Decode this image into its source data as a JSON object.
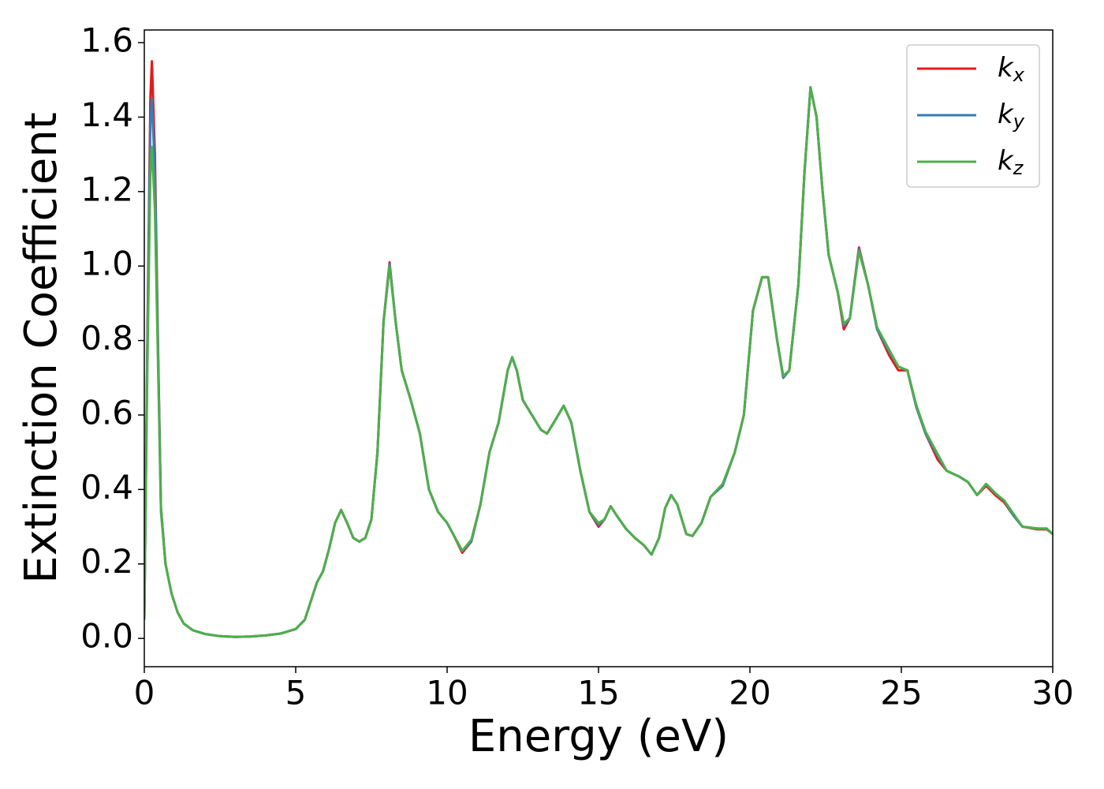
{
  "chart_data": {
    "type": "line",
    "xlabel": "Energy (eV)",
    "ylabel": "Extinction Coefficient",
    "xlim": [
      0,
      30
    ],
    "ylim": [
      -0.076,
      1.634
    ],
    "xticks": [
      0,
      5,
      10,
      15,
      20,
      25,
      30
    ],
    "yticks": [
      {
        "value": 0,
        "label": "0.0"
      },
      {
        "value": 0.2,
        "label": "0.2"
      },
      {
        "value": 0.4,
        "label": "0.4"
      },
      {
        "value": 0.6,
        "label": "0.6"
      },
      {
        "value": 0.8,
        "label": "0.8"
      },
      {
        "value": 1.0,
        "label": "1.0"
      },
      {
        "value": 1.2,
        "label": "1.2"
      },
      {
        "value": 1.4,
        "label": "1.4"
      },
      {
        "value": 1.6,
        "label": "1.6"
      }
    ],
    "legend": "upper right",
    "x": [
      0,
      0.1,
      0.2,
      0.25,
      0.35,
      0.45,
      0.55,
      0.7,
      0.9,
      1.1,
      1.3,
      1.6,
      2.0,
      2.5,
      3,
      3.5,
      4,
      4.5,
      5,
      5.3,
      5.5,
      5.7,
      5.9,
      6.1,
      6.3,
      6.5,
      6.7,
      6.9,
      7.1,
      7.3,
      7.5,
      7.7,
      7.9,
      8.1,
      8.3,
      8.5,
      8.8,
      9.1,
      9.4,
      9.7,
      10.0,
      10.2,
      10.5,
      10.8,
      11.1,
      11.4,
      11.7,
      12.0,
      12.15,
      12.3,
      12.5,
      12.8,
      13.1,
      13.3,
      13.6,
      13.85,
      14.1,
      14.4,
      14.7,
      15.0,
      15.2,
      15.4,
      15.6,
      15.9,
      16.2,
      16.5,
      16.75,
      17.0,
      17.2,
      17.4,
      17.6,
      17.9,
      18.1,
      18.4,
      18.7,
      19.1,
      19.5,
      19.8,
      20.1,
      20.4,
      20.6,
      20.9,
      21.1,
      21.3,
      21.6,
      21.8,
      22.0,
      22.2,
      22.4,
      22.6,
      22.9,
      23.1,
      23.3,
      23.6,
      23.9,
      24.2,
      24.6,
      24.9,
      25.2,
      25.5,
      25.8,
      26.2,
      26.5,
      26.9,
      27.2,
      27.5,
      27.8,
      28.1,
      28.4,
      28.7,
      29.0,
      29.5,
      29.8,
      30
    ],
    "series": [
      {
        "name": "kx",
        "color": "#e41a1c",
        "values": [
          0.05,
          0.8,
          1.45,
          1.55,
          1.3,
          0.8,
          0.35,
          0.2,
          0.12,
          0.07,
          0.04,
          0.022,
          0.012,
          0.006,
          0.004,
          0.005,
          0.008,
          0.013,
          0.025,
          0.05,
          0.1,
          0.15,
          0.18,
          0.24,
          0.31,
          0.345,
          0.31,
          0.27,
          0.26,
          0.27,
          0.32,
          0.5,
          0.85,
          1.01,
          0.85,
          0.72,
          0.64,
          0.55,
          0.4,
          0.34,
          0.31,
          0.28,
          0.23,
          0.26,
          0.36,
          0.5,
          0.58,
          0.72,
          0.755,
          0.72,
          0.64,
          0.6,
          0.56,
          0.55,
          0.59,
          0.625,
          0.58,
          0.45,
          0.34,
          0.3,
          0.32,
          0.355,
          0.33,
          0.295,
          0.27,
          0.25,
          0.225,
          0.27,
          0.35,
          0.385,
          0.36,
          0.28,
          0.275,
          0.31,
          0.38,
          0.41,
          0.5,
          0.6,
          0.88,
          0.97,
          0.97,
          0.8,
          0.7,
          0.72,
          0.95,
          1.25,
          1.48,
          1.4,
          1.2,
          1.03,
          0.93,
          0.83,
          0.86,
          1.05,
          0.95,
          0.83,
          0.76,
          0.72,
          0.72,
          0.62,
          0.55,
          0.48,
          0.45,
          0.435,
          0.42,
          0.385,
          0.41,
          0.385,
          0.365,
          0.33,
          0.3,
          0.293,
          0.293,
          0.28
        ]
      },
      {
        "name": "ky",
        "color": "#377eb8",
        "values": [
          0.05,
          0.78,
          1.38,
          1.45,
          1.25,
          0.78,
          0.35,
          0.2,
          0.12,
          0.07,
          0.04,
          0.022,
          0.012,
          0.006,
          0.004,
          0.005,
          0.008,
          0.013,
          0.025,
          0.05,
          0.1,
          0.15,
          0.18,
          0.24,
          0.31,
          0.345,
          0.31,
          0.27,
          0.26,
          0.27,
          0.32,
          0.5,
          0.85,
          1.005,
          0.85,
          0.72,
          0.64,
          0.55,
          0.4,
          0.34,
          0.31,
          0.28,
          0.235,
          0.26,
          0.36,
          0.5,
          0.58,
          0.72,
          0.755,
          0.72,
          0.64,
          0.6,
          0.56,
          0.55,
          0.59,
          0.625,
          0.58,
          0.45,
          0.34,
          0.305,
          0.32,
          0.355,
          0.33,
          0.295,
          0.27,
          0.25,
          0.225,
          0.27,
          0.35,
          0.385,
          0.36,
          0.28,
          0.275,
          0.31,
          0.38,
          0.41,
          0.5,
          0.6,
          0.88,
          0.97,
          0.97,
          0.8,
          0.7,
          0.72,
          0.95,
          1.25,
          1.48,
          1.4,
          1.2,
          1.03,
          0.93,
          0.84,
          0.86,
          1.045,
          0.95,
          0.83,
          0.77,
          0.73,
          0.72,
          0.62,
          0.55,
          0.49,
          0.45,
          0.435,
          0.42,
          0.385,
          0.415,
          0.39,
          0.37,
          0.33,
          0.3,
          0.295,
          0.295,
          0.28
        ]
      },
      {
        "name": "kz",
        "color": "#4daf4a",
        "values": [
          0.05,
          0.72,
          1.25,
          1.32,
          1.15,
          0.75,
          0.34,
          0.2,
          0.12,
          0.07,
          0.04,
          0.022,
          0.012,
          0.006,
          0.004,
          0.005,
          0.008,
          0.013,
          0.025,
          0.05,
          0.1,
          0.15,
          0.18,
          0.24,
          0.31,
          0.345,
          0.31,
          0.27,
          0.26,
          0.27,
          0.32,
          0.5,
          0.85,
          1.0,
          0.85,
          0.72,
          0.64,
          0.55,
          0.4,
          0.34,
          0.31,
          0.28,
          0.235,
          0.265,
          0.36,
          0.5,
          0.58,
          0.72,
          0.755,
          0.72,
          0.64,
          0.6,
          0.56,
          0.55,
          0.59,
          0.625,
          0.58,
          0.45,
          0.34,
          0.31,
          0.32,
          0.355,
          0.33,
          0.295,
          0.27,
          0.25,
          0.225,
          0.27,
          0.35,
          0.385,
          0.36,
          0.28,
          0.275,
          0.31,
          0.38,
          0.415,
          0.5,
          0.6,
          0.88,
          0.97,
          0.97,
          0.8,
          0.705,
          0.72,
          0.95,
          1.25,
          1.48,
          1.4,
          1.2,
          1.03,
          0.93,
          0.845,
          0.86,
          1.04,
          0.95,
          0.835,
          0.775,
          0.73,
          0.72,
          0.625,
          0.555,
          0.495,
          0.45,
          0.435,
          0.42,
          0.385,
          0.415,
          0.39,
          0.37,
          0.335,
          0.3,
          0.295,
          0.295,
          0.28
        ]
      }
    ]
  }
}
